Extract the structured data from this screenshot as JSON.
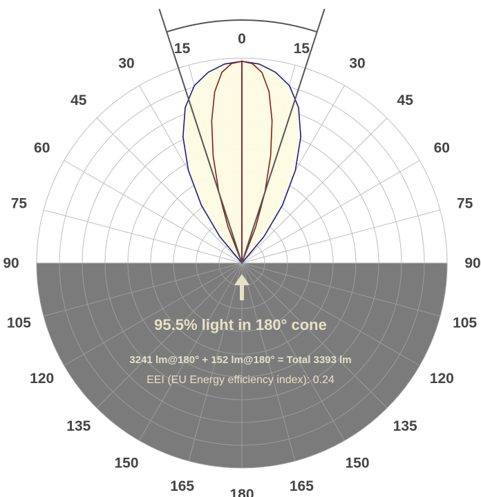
{
  "chart_data": {
    "type": "polar",
    "angle_ticks": [
      {
        "angle": 0,
        "label": "0"
      },
      {
        "angle": -15,
        "label": "15"
      },
      {
        "angle": 15,
        "label": "15"
      },
      {
        "angle": -30,
        "label": "30"
      },
      {
        "angle": 30,
        "label": "30"
      },
      {
        "angle": -45,
        "label": "45"
      },
      {
        "angle": 45,
        "label": "45"
      },
      {
        "angle": -60,
        "label": "60"
      },
      {
        "angle": 60,
        "label": "60"
      },
      {
        "angle": -75,
        "label": "75"
      },
      {
        "angle": 75,
        "label": "75"
      },
      {
        "angle": -90,
        "label": "90"
      },
      {
        "angle": 90,
        "label": "90"
      },
      {
        "angle": -105,
        "label": "105"
      },
      {
        "angle": 105,
        "label": "105"
      },
      {
        "angle": -120,
        "label": "120"
      },
      {
        "angle": 120,
        "label": "120"
      },
      {
        "angle": -135,
        "label": "135"
      },
      {
        "angle": 135,
        "label": "135"
      },
      {
        "angle": -150,
        "label": "150"
      },
      {
        "angle": 150,
        "label": "150"
      },
      {
        "angle": -165,
        "label": "165"
      },
      {
        "angle": 165,
        "label": "165"
      },
      {
        "angle": 180,
        "label": "180"
      }
    ],
    "ring_count": 9,
    "cone_half_angle": 18,
    "series": [
      {
        "color": "#1a1a8c",
        "points": [
          [
            0,
            1.0
          ],
          [
            5,
            0.99
          ],
          [
            10,
            0.96
          ],
          [
            15,
            0.91
          ],
          [
            20,
            0.82
          ],
          [
            25,
            0.69
          ],
          [
            30,
            0.53
          ],
          [
            35,
            0.35
          ],
          [
            40,
            0.17
          ],
          [
            45,
            0.0
          ]
        ]
      },
      {
        "color": "#8b1a1a",
        "points": [
          [
            0,
            1.0
          ],
          [
            3,
            0.99
          ],
          [
            6,
            0.95
          ],
          [
            9,
            0.86
          ],
          [
            12,
            0.72
          ],
          [
            15,
            0.55
          ],
          [
            18,
            0.37
          ],
          [
            21,
            0.19
          ],
          [
            24,
            0.0
          ]
        ]
      }
    ],
    "colors": {
      "fill": "#fdfbe1",
      "lower_half": "#7b7b7b",
      "grid_upper": "#bdbdbd",
      "grid_lower": "#9c9c9c",
      "annotation": "#e6e1c6"
    }
  },
  "annotation": {
    "cone_text": "95.5% light in 180° cone",
    "flux_text": "3241 lm@180° + 152 lm@180° = Total 3393 lm",
    "eei_text": "EEI (EU Energy efficiency index): 0.24"
  }
}
